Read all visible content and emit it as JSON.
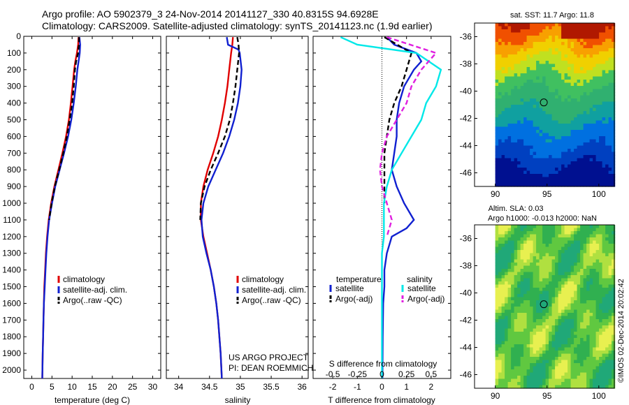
{
  "header": {
    "line1": "Argo profile: AO 5902379_3 24-Nov-2014 20141127_330 40.8315S 94.6928E",
    "line2": "Climatology: CARS2009. Satellite-adjusted climatology: synTS_20141123.nc (1.9d earlier)"
  },
  "colors": {
    "climatology": "#e00000",
    "satellite": "#1020d0",
    "argo": "#000000",
    "cyan": "#00e8e8",
    "magenta": "#e020e0"
  },
  "chart_data": [
    {
      "type": "line",
      "panel": "temperature",
      "xlabel": "temperature (deg C)",
      "ylabel": "",
      "xlim": [
        -2,
        32
      ],
      "ylim": [
        2050,
        0
      ],
      "xticks": [
        0,
        5,
        10,
        15,
        20,
        25,
        30
      ],
      "yticks": [
        0,
        100,
        200,
        300,
        400,
        500,
        600,
        700,
        800,
        900,
        1000,
        1100,
        1200,
        1300,
        1400,
        1500,
        1600,
        1700,
        1800,
        1900,
        2000
      ],
      "legend": {
        "placement": "bottom-right",
        "entries": [
          "climatology",
          "satellite-adj. clim.",
          "Argo(..raw -QC)"
        ]
      },
      "series": [
        {
          "name": "climatology",
          "color": "#e00000",
          "depth": [
            5,
            50,
            100,
            150,
            200,
            300,
            400,
            500,
            600,
            700,
            800,
            900,
            1000,
            1100,
            1200,
            1300,
            1400,
            1500,
            1600,
            1700,
            1800,
            1900,
            2050
          ],
          "values": [
            11.6,
            11.5,
            11.2,
            10.8,
            10.5,
            10.1,
            9.7,
            9.2,
            8.5,
            7.6,
            6.6,
            5.6,
            4.8,
            4.2,
            3.8,
            3.5,
            3.3,
            3.1,
            3.0,
            2.9,
            2.8,
            2.7,
            2.6
          ]
        },
        {
          "name": "satellite-adj. clim.",
          "color": "#1020d0",
          "depth": [
            5,
            50,
            100,
            150,
            200,
            300,
            400,
            500,
            600,
            700,
            800,
            900,
            1000,
            1100,
            1200,
            1300,
            1400,
            1500,
            1600,
            1700,
            1800,
            1900,
            2050
          ],
          "values": [
            11.8,
            12.0,
            11.9,
            11.6,
            11.3,
            10.9,
            10.4,
            9.8,
            9.0,
            8.0,
            6.9,
            5.8,
            5.0,
            4.3,
            3.9,
            3.6,
            3.4,
            3.2,
            3.0,
            2.9,
            2.8,
            2.7,
            2.6
          ]
        },
        {
          "name": "Argo(..raw -QC)",
          "color": "#000000",
          "dash": true,
          "depth": [
            5,
            50,
            100,
            150,
            200,
            300,
            400,
            500,
            600,
            700,
            800,
            900,
            1000,
            1100
          ],
          "values": [
            11.7,
            11.7,
            11.5,
            11.0,
            10.7,
            10.4,
            10.0,
            9.4,
            8.7,
            7.8,
            6.8,
            5.7,
            4.9,
            4.3
          ]
        }
      ]
    },
    {
      "type": "line",
      "panel": "salinity",
      "xlabel": "salinity",
      "ylabel": "",
      "xlim": [
        33.8,
        36.1
      ],
      "ylim": [
        2050,
        0
      ],
      "xticks": [
        34,
        34.5,
        35,
        35.5,
        36
      ],
      "xtick_labels": [
        "34",
        "34.5",
        "35",
        "35.5",
        "36"
      ],
      "legend": {
        "placement": "bottom-right",
        "entries": [
          "climatology",
          "satellite-adj. clim.",
          "Argo(..raw -QC)"
        ]
      },
      "series": [
        {
          "name": "climatology",
          "color": "#e00000",
          "depth": [
            5,
            50,
            100,
            200,
            300,
            400,
            500,
            600,
            700,
            800,
            900,
            1000,
            1100,
            1200,
            1300,
            1400,
            1500,
            1600,
            1700,
            1800,
            1900,
            2050
          ],
          "values": [
            34.88,
            34.87,
            34.85,
            34.82,
            34.79,
            34.75,
            34.7,
            34.64,
            34.56,
            34.47,
            34.4,
            34.36,
            34.36,
            34.4,
            34.46,
            34.52,
            34.57,
            34.61,
            34.64,
            34.66,
            34.68,
            34.7
          ]
        },
        {
          "name": "satellite-adj. clim.",
          "color": "#1020d0",
          "depth": [
            5,
            50,
            80,
            100,
            200,
            300,
            400,
            500,
            600,
            700,
            800,
            900,
            1000,
            1100,
            1200,
            1300,
            1400,
            1500,
            1600,
            1700,
            1800,
            1900,
            2050
          ],
          "values": [
            34.78,
            34.8,
            34.97,
            34.99,
            35.02,
            35.0,
            34.96,
            34.9,
            34.82,
            34.72,
            34.6,
            34.48,
            34.4,
            34.37,
            34.39,
            34.45,
            34.52,
            34.57,
            34.61,
            34.64,
            34.66,
            34.68,
            34.7
          ]
        },
        {
          "name": "Argo(..raw -QC)",
          "color": "#000000",
          "dash": true,
          "depth": [
            5,
            50,
            100,
            200,
            300,
            400,
            500,
            600,
            700,
            800,
            900,
            1000,
            1100
          ],
          "values": [
            34.95,
            34.97,
            34.98,
            34.95,
            34.92,
            34.88,
            34.83,
            34.75,
            34.64,
            34.52,
            34.42,
            34.36,
            34.35
          ]
        }
      ],
      "annotations": [
        "US ARGO PROJECT",
        "PI: DEAN ROEMMICH"
      ]
    },
    {
      "type": "line",
      "panel": "difference",
      "xlabel": "T difference from climatology",
      "top_xlabel": "S difference from climatology",
      "xlim": [
        -2.8,
        2.8
      ],
      "ylim": [
        2050,
        0
      ],
      "xticks": [
        -2,
        -1,
        0,
        1,
        2
      ],
      "top_xticks": [
        -0.5,
        -0.25,
        0,
        0.25,
        0.5
      ],
      "top_xtick_labels": [
        "-0.5",
        "-0.25",
        "0",
        "0.25",
        "0.5"
      ],
      "legend": {
        "placement": "right",
        "temperature_header": "temperature",
        "salinity_header": "salinity",
        "entries": [
          "satellite",
          "Argo(-adj)",
          "satellite",
          "Argo(-adj)"
        ]
      },
      "series": [
        {
          "name": "temperature satellite",
          "color": "#1020d0",
          "depth": [
            5,
            50,
            100,
            150,
            200,
            300,
            400,
            500,
            600,
            700,
            800,
            900,
            1000,
            1100,
            1150,
            1200,
            1300,
            1400,
            1500,
            1600,
            1800,
            2050
          ],
          "values": [
            0.2,
            0.5,
            1.4,
            1.6,
            1.3,
            0.9,
            0.7,
            0.6,
            0.6,
            0.5,
            0.4,
            0.6,
            0.9,
            1.3,
            1.0,
            0.4,
            0.2,
            0.1,
            0.1,
            0.05,
            0.03,
            0.02
          ]
        },
        {
          "name": "temperature Argo(-adj)",
          "color": "#000000",
          "dash": true,
          "depth": [
            5,
            100,
            200,
            300,
            400,
            500,
            600,
            700,
            800,
            900,
            1000
          ],
          "values": [
            0.1,
            1.2,
            1.0,
            0.8,
            0.5,
            0.3,
            0.2,
            0.1,
            0.1,
            0.1,
            0.1
          ]
        },
        {
          "name": "salinity satellite",
          "color": "#00e8e8",
          "depth": [
            5,
            50,
            100,
            200,
            300,
            400,
            500,
            600,
            700,
            800,
            900,
            1000,
            1100,
            1200,
            1300,
            1400,
            1500,
            1600,
            1800,
            2050
          ],
          "values": [
            -0.42,
            -0.25,
            0.35,
            0.6,
            0.55,
            0.45,
            0.4,
            0.3,
            0.2,
            0.1,
            0.05,
            0.02,
            0.02,
            0.02,
            0.0,
            0.0,
            0.0,
            0.0,
            0.0,
            0.0
          ]
        },
        {
          "name": "salinity Argo(-adj)",
          "color": "#e020e0",
          "dash": true,
          "depth": [
            5,
            100,
            200,
            300,
            400,
            500,
            600,
            700,
            800,
            900,
            1000,
            1100,
            1200
          ],
          "values": [
            0.05,
            0.55,
            0.4,
            0.3,
            0.25,
            0.15,
            0.05,
            0.0,
            -0.02,
            0.0,
            0.05,
            0.1,
            0.05
          ]
        }
      ]
    },
    {
      "type": "heatmap",
      "panel": "sst-map",
      "title": "sat. SST: 11.7 Argo: 11.8",
      "xticks": [
        90,
        95,
        100
      ],
      "yticks": [
        -36,
        -38,
        -40,
        -42,
        -44,
        -46
      ],
      "xlim": [
        88,
        101.5
      ],
      "ylim": [
        -47,
        -35
      ],
      "marker": {
        "lon": 94.69,
        "lat": -40.83
      }
    },
    {
      "type": "heatmap",
      "panel": "sla-map",
      "title_line1": "Altim. SLA: 0.03",
      "title_line2": "Argo h1000: -0.013 h2000: NaN",
      "xticks": [
        90,
        95,
        100
      ],
      "yticks": [
        -36,
        -38,
        -40,
        -42,
        -44,
        -46
      ],
      "xlim": [
        88,
        101.5
      ],
      "ylim": [
        -47,
        -35
      ],
      "marker": {
        "lon": 94.69,
        "lat": -40.83
      }
    }
  ],
  "footer": {
    "credit": "©IMOS 02-Dec-2014 20:02:42"
  }
}
